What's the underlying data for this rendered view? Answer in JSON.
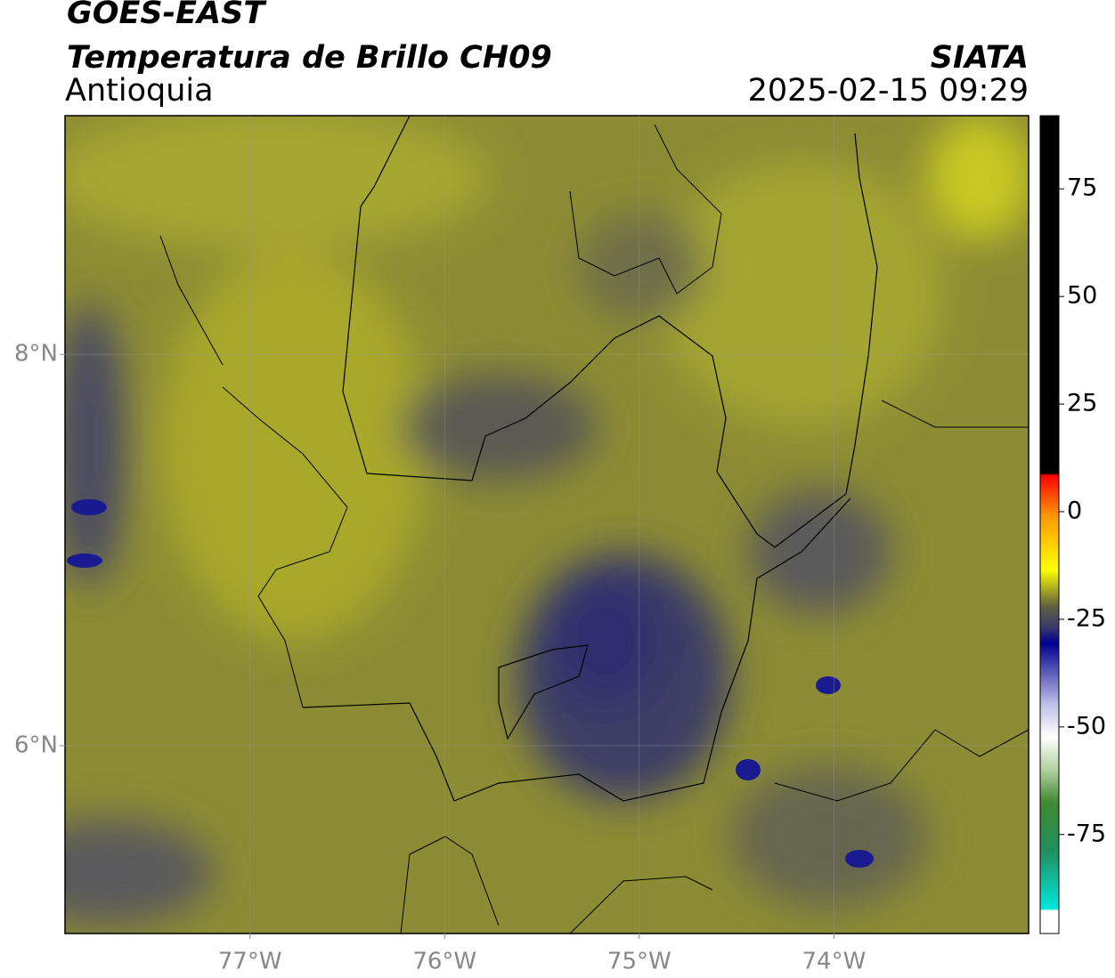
{
  "header": {
    "title": "GOES-EAST",
    "subtitle": "Temperatura de Brillo CH09",
    "region": "Antioquia",
    "agency": "SIATA",
    "datetime": "2025-02-15 09:29"
  },
  "map": {
    "lonlim": [
      -77.95,
      -73
    ],
    "latlim": [
      5.04,
      9.22
    ],
    "lonticks": [
      {
        "value": -77,
        "label": "77°W"
      },
      {
        "value": -76,
        "label": "76°W"
      },
      {
        "value": -75,
        "label": "75°W"
      },
      {
        "value": -74,
        "label": "74°W"
      }
    ],
    "latticks": [
      {
        "value": 8,
        "label": "8°N"
      },
      {
        "value": 6,
        "label": "6°N"
      }
    ]
  },
  "colorbar": {
    "lim": [
      -98,
      92
    ],
    "ticks": [
      75,
      50,
      25,
      0,
      -25,
      -50,
      -75
    ]
  }
}
